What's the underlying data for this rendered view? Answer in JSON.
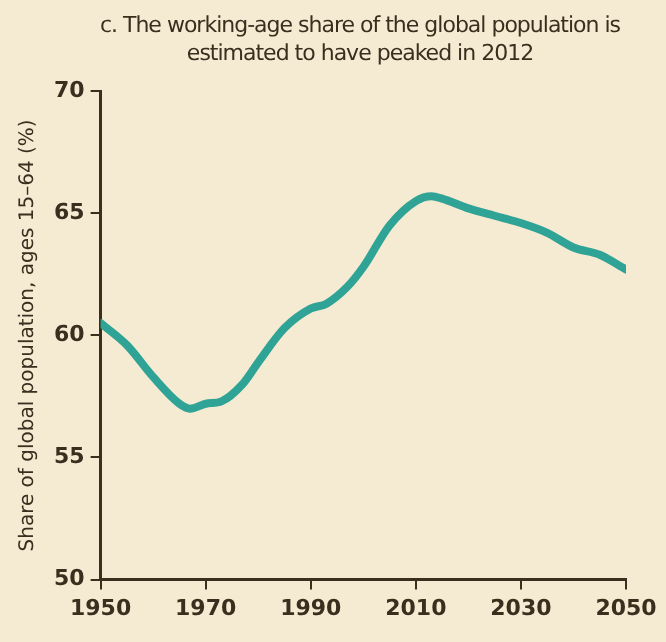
{
  "chart_data": {
    "type": "line",
    "title": "c. The working-age share of the global population is estimated to have peaked in 2012",
    "ylabel": "Share of global population, ages 15–64 (%)",
    "x": [
      1950,
      1955,
      1960,
      1965,
      1967,
      1970,
      1973,
      1977,
      1980,
      1985,
      1990,
      1993,
      1997,
      2000,
      2005,
      2010,
      2013,
      2015,
      2020,
      2025,
      2030,
      2035,
      2040,
      2045,
      2050
    ],
    "series": [
      {
        "color": "#2fa395",
        "values": [
          60.5,
          59.6,
          58.3,
          57.2,
          57.0,
          57.2,
          57.3,
          58.0,
          58.9,
          60.3,
          61.1,
          61.3,
          62.0,
          62.8,
          64.5,
          65.5,
          65.7,
          65.6,
          65.2,
          64.9,
          64.6,
          64.2,
          63.6,
          63.3,
          62.7
        ]
      }
    ],
    "xlim": [
      1950,
      2050
    ],
    "xticks": [
      1950,
      1970,
      1990,
      2010,
      2030,
      2050
    ],
    "ylim": [
      50,
      70
    ],
    "yticks": [
      50,
      55,
      60,
      65,
      70
    ],
    "grid": false,
    "legend": false,
    "marker": "none",
    "line_style": "solid"
  }
}
